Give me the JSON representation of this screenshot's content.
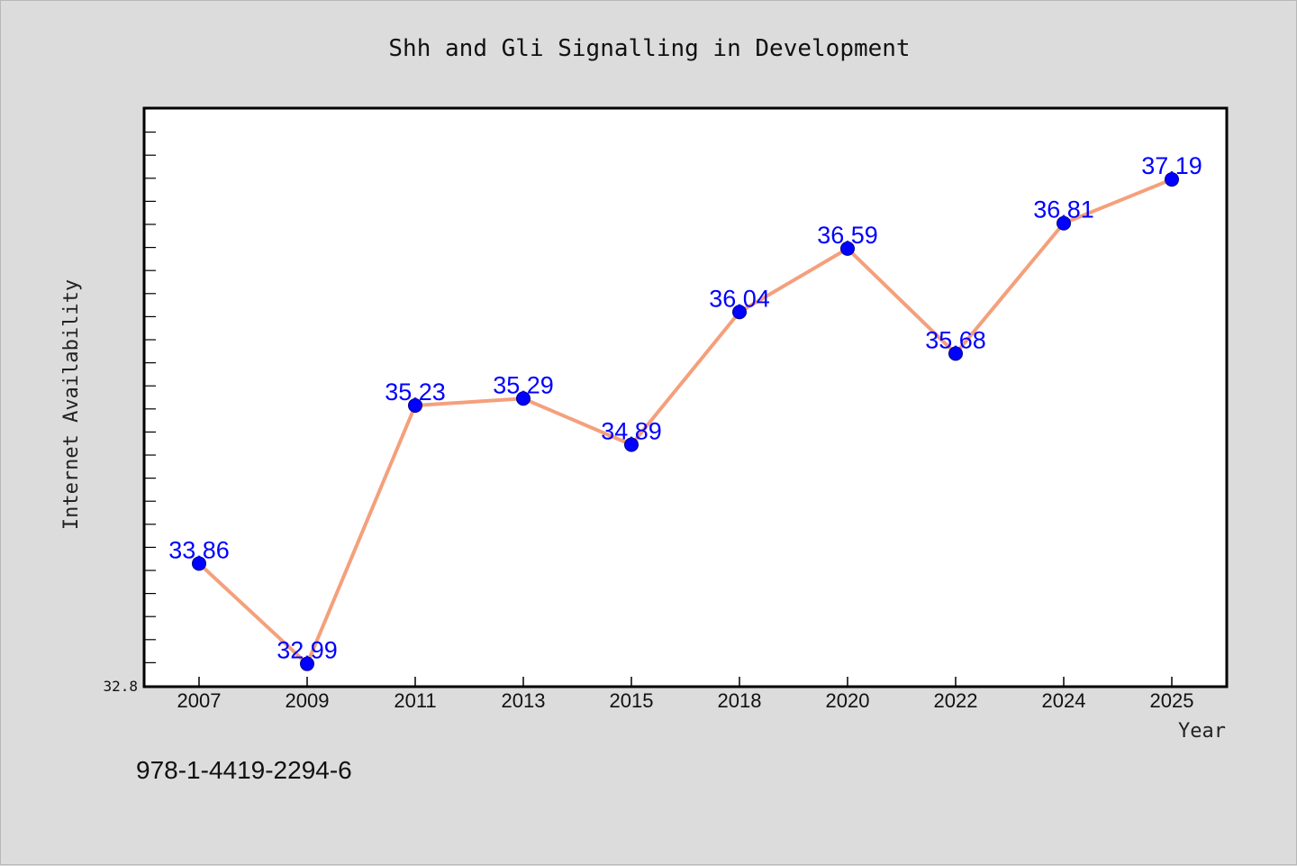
{
  "colors": {
    "background": "#dcdcdc",
    "plot_background": "#ffffff",
    "line": "#f4a07c",
    "marker": "#0000ff",
    "data_label": "#0000ff",
    "frame": "#000000"
  },
  "footer": {
    "isbn": "978-1-4419-2294-6"
  },
  "chart_data": {
    "type": "line",
    "title": "Shh and Gli Signalling in Development",
    "xlabel": "Year",
    "ylabel": "Internet Availability",
    "categories": [
      "2007",
      "2009",
      "2011",
      "2013",
      "2015",
      "2018",
      "2020",
      "2022",
      "2024",
      "2025"
    ],
    "values": [
      33.86,
      32.99,
      35.23,
      35.29,
      34.89,
      36.04,
      36.59,
      35.68,
      36.81,
      37.19
    ],
    "value_labels": [
      "33.86",
      "32.99",
      "35.23",
      "35.29",
      "34.89",
      "36.04",
      "36.59",
      "35.68",
      "36.81",
      "37.19"
    ],
    "ylim": [
      32.8,
      37.8
    ],
    "y_tick_labels": [
      "32.8"
    ],
    "grid": false,
    "legend": "none"
  }
}
